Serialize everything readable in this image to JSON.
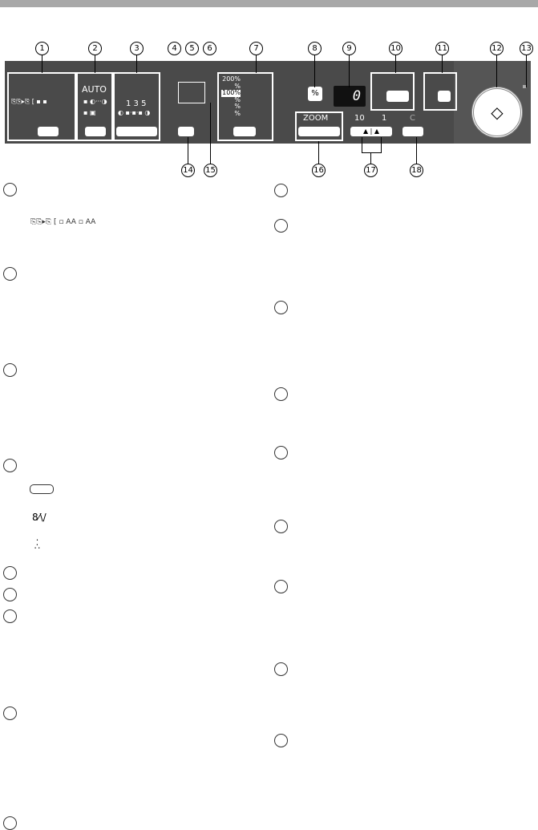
{
  "callouts": [
    "1",
    "2",
    "3",
    "4",
    "5",
    "6",
    "7",
    "8",
    "9",
    "10",
    "11",
    "12",
    "13",
    "14",
    "15",
    "16",
    "17",
    "18"
  ],
  "panel": {
    "exposure_auto": "AUTO",
    "exposure_levels": "1  3  5",
    "ratio_presets": [
      "200%",
      "%",
      "100%",
      "%",
      "%",
      "%"
    ],
    "percent_key": "%",
    "display_value": "0",
    "zoom_label": "ZOOM",
    "copies_label_left": "10",
    "copies_label_right": "1",
    "clear_label": "C"
  },
  "icons": [
    "toner-cartridge-icon",
    "paper-jam-icon",
    "toner-dots-icon",
    "duplex-copy-icon",
    "start-icon",
    "power-save-icon"
  ]
}
